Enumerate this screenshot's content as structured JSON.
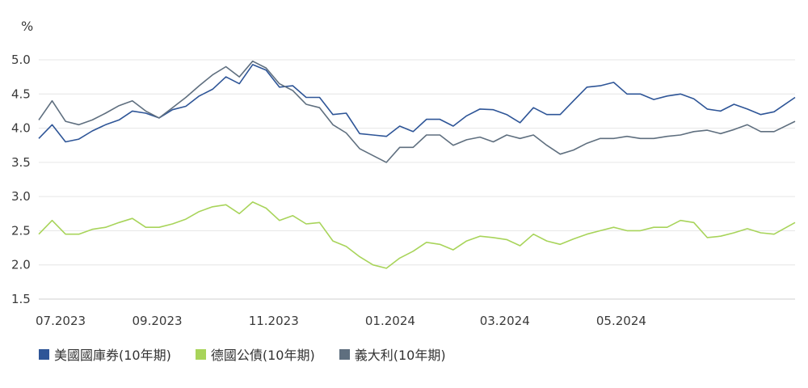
{
  "chart_data": {
    "type": "line",
    "unit_label": "%",
    "ylim": [
      1.5,
      5.0
    ],
    "y_ticks": [
      "5.0",
      "4.5",
      "4.0",
      "3.5",
      "3.0",
      "2.5",
      "2.0",
      "1.5"
    ],
    "x_ticks": [
      "07.2023",
      "09.2023",
      "11.2023",
      "01.2024",
      "03.2024",
      "05.2024"
    ],
    "x_range": [
      "2023-07-01",
      "2024-07-31"
    ],
    "grid": true,
    "legend_position": "bottom-left",
    "series": [
      {
        "name": "美國國庫券(10年期)",
        "color": "#2e5597",
        "points": [
          [
            "2023-07-01",
            3.85
          ],
          [
            "2023-07-08",
            4.05
          ],
          [
            "2023-07-15",
            3.8
          ],
          [
            "2023-07-22",
            3.84
          ],
          [
            "2023-07-29",
            3.96
          ],
          [
            "2023-08-05",
            4.05
          ],
          [
            "2023-08-12",
            4.12
          ],
          [
            "2023-08-19",
            4.25
          ],
          [
            "2023-08-26",
            4.22
          ],
          [
            "2023-09-02",
            4.15
          ],
          [
            "2023-09-09",
            4.27
          ],
          [
            "2023-09-16",
            4.32
          ],
          [
            "2023-09-23",
            4.47
          ],
          [
            "2023-09-30",
            4.57
          ],
          [
            "2023-10-07",
            4.75
          ],
          [
            "2023-10-14",
            4.65
          ],
          [
            "2023-10-21",
            4.93
          ],
          [
            "2023-10-28",
            4.85
          ],
          [
            "2023-11-04",
            4.6
          ],
          [
            "2023-11-11",
            4.62
          ],
          [
            "2023-11-18",
            4.45
          ],
          [
            "2023-11-25",
            4.45
          ],
          [
            "2023-12-02",
            4.2
          ],
          [
            "2023-12-09",
            4.22
          ],
          [
            "2023-12-16",
            3.92
          ],
          [
            "2023-12-23",
            3.9
          ],
          [
            "2023-12-30",
            3.88
          ],
          [
            "2024-01-06",
            4.03
          ],
          [
            "2024-01-13",
            3.95
          ],
          [
            "2024-01-20",
            4.13
          ],
          [
            "2024-01-27",
            4.13
          ],
          [
            "2024-02-03",
            4.03
          ],
          [
            "2024-02-10",
            4.18
          ],
          [
            "2024-02-17",
            4.28
          ],
          [
            "2024-02-24",
            4.27
          ],
          [
            "2024-03-02",
            4.2
          ],
          [
            "2024-03-09",
            4.08
          ],
          [
            "2024-03-16",
            4.3
          ],
          [
            "2024-03-23",
            4.2
          ],
          [
            "2024-03-30",
            4.2
          ],
          [
            "2024-04-06",
            4.4
          ],
          [
            "2024-04-13",
            4.6
          ],
          [
            "2024-04-20",
            4.62
          ],
          [
            "2024-04-27",
            4.67
          ],
          [
            "2024-05-04",
            4.5
          ],
          [
            "2024-05-11",
            4.5
          ],
          [
            "2024-05-18",
            4.42
          ],
          [
            "2024-05-25",
            4.47
          ],
          [
            "2024-06-01",
            4.5
          ],
          [
            "2024-06-08",
            4.43
          ],
          [
            "2024-06-15",
            4.28
          ],
          [
            "2024-06-22",
            4.25
          ],
          [
            "2024-06-29",
            4.35
          ],
          [
            "2024-07-06",
            4.28
          ],
          [
            "2024-07-13",
            4.2
          ],
          [
            "2024-07-20",
            4.24
          ],
          [
            "2024-07-31",
            4.45
          ]
        ]
      },
      {
        "name": "德國公債(10年期)",
        "color": "#a8d45a",
        "points": [
          [
            "2023-07-01",
            2.45
          ],
          [
            "2023-07-08",
            2.65
          ],
          [
            "2023-07-15",
            2.45
          ],
          [
            "2023-07-22",
            2.45
          ],
          [
            "2023-07-29",
            2.52
          ],
          [
            "2023-08-05",
            2.55
          ],
          [
            "2023-08-12",
            2.62
          ],
          [
            "2023-08-19",
            2.68
          ],
          [
            "2023-08-26",
            2.55
          ],
          [
            "2023-09-02",
            2.55
          ],
          [
            "2023-09-09",
            2.6
          ],
          [
            "2023-09-16",
            2.67
          ],
          [
            "2023-09-23",
            2.78
          ],
          [
            "2023-09-30",
            2.85
          ],
          [
            "2023-10-07",
            2.88
          ],
          [
            "2023-10-14",
            2.75
          ],
          [
            "2023-10-21",
            2.92
          ],
          [
            "2023-10-28",
            2.83
          ],
          [
            "2023-11-04",
            2.65
          ],
          [
            "2023-11-11",
            2.72
          ],
          [
            "2023-11-18",
            2.6
          ],
          [
            "2023-11-25",
            2.62
          ],
          [
            "2023-12-02",
            2.35
          ],
          [
            "2023-12-09",
            2.27
          ],
          [
            "2023-12-16",
            2.12
          ],
          [
            "2023-12-23",
            2.0
          ],
          [
            "2023-12-30",
            1.95
          ],
          [
            "2024-01-06",
            2.1
          ],
          [
            "2024-01-13",
            2.2
          ],
          [
            "2024-01-20",
            2.33
          ],
          [
            "2024-01-27",
            2.3
          ],
          [
            "2024-02-03",
            2.22
          ],
          [
            "2024-02-10",
            2.35
          ],
          [
            "2024-02-17",
            2.42
          ],
          [
            "2024-02-24",
            2.4
          ],
          [
            "2024-03-02",
            2.37
          ],
          [
            "2024-03-09",
            2.28
          ],
          [
            "2024-03-16",
            2.45
          ],
          [
            "2024-03-23",
            2.35
          ],
          [
            "2024-03-30",
            2.3
          ],
          [
            "2024-04-06",
            2.38
          ],
          [
            "2024-04-13",
            2.45
          ],
          [
            "2024-04-20",
            2.5
          ],
          [
            "2024-04-27",
            2.55
          ],
          [
            "2024-05-04",
            2.5
          ],
          [
            "2024-05-11",
            2.5
          ],
          [
            "2024-05-18",
            2.55
          ],
          [
            "2024-05-25",
            2.55
          ],
          [
            "2024-06-01",
            2.65
          ],
          [
            "2024-06-08",
            2.62
          ],
          [
            "2024-06-15",
            2.4
          ],
          [
            "2024-06-22",
            2.42
          ],
          [
            "2024-06-29",
            2.47
          ],
          [
            "2024-07-06",
            2.53
          ],
          [
            "2024-07-13",
            2.47
          ],
          [
            "2024-07-20",
            2.45
          ],
          [
            "2024-07-31",
            2.62
          ]
        ]
      },
      {
        "name": "義大利(10年期)",
        "color": "#5f6f7f",
        "points": [
          [
            "2023-07-01",
            4.12
          ],
          [
            "2023-07-08",
            4.4
          ],
          [
            "2023-07-15",
            4.1
          ],
          [
            "2023-07-22",
            4.05
          ],
          [
            "2023-07-29",
            4.12
          ],
          [
            "2023-08-05",
            4.22
          ],
          [
            "2023-08-12",
            4.33
          ],
          [
            "2023-08-19",
            4.4
          ],
          [
            "2023-08-26",
            4.25
          ],
          [
            "2023-09-02",
            4.15
          ],
          [
            "2023-09-09",
            4.3
          ],
          [
            "2023-09-16",
            4.45
          ],
          [
            "2023-09-23",
            4.62
          ],
          [
            "2023-09-30",
            4.78
          ],
          [
            "2023-10-07",
            4.9
          ],
          [
            "2023-10-14",
            4.75
          ],
          [
            "2023-10-21",
            4.98
          ],
          [
            "2023-10-28",
            4.88
          ],
          [
            "2023-11-04",
            4.65
          ],
          [
            "2023-11-11",
            4.55
          ],
          [
            "2023-11-18",
            4.35
          ],
          [
            "2023-11-25",
            4.3
          ],
          [
            "2023-12-02",
            4.05
          ],
          [
            "2023-12-09",
            3.93
          ],
          [
            "2023-12-16",
            3.7
          ],
          [
            "2023-12-23",
            3.6
          ],
          [
            "2023-12-30",
            3.5
          ],
          [
            "2024-01-06",
            3.72
          ],
          [
            "2024-01-13",
            3.72
          ],
          [
            "2024-01-20",
            3.9
          ],
          [
            "2024-01-27",
            3.9
          ],
          [
            "2024-02-03",
            3.75
          ],
          [
            "2024-02-10",
            3.83
          ],
          [
            "2024-02-17",
            3.87
          ],
          [
            "2024-02-24",
            3.8
          ],
          [
            "2024-03-02",
            3.9
          ],
          [
            "2024-03-09",
            3.85
          ],
          [
            "2024-03-16",
            3.9
          ],
          [
            "2024-03-23",
            3.75
          ],
          [
            "2024-03-30",
            3.62
          ],
          [
            "2024-04-06",
            3.68
          ],
          [
            "2024-04-13",
            3.78
          ],
          [
            "2024-04-20",
            3.85
          ],
          [
            "2024-04-27",
            3.85
          ],
          [
            "2024-05-04",
            3.88
          ],
          [
            "2024-05-11",
            3.85
          ],
          [
            "2024-05-18",
            3.85
          ],
          [
            "2024-05-25",
            3.88
          ],
          [
            "2024-06-01",
            3.9
          ],
          [
            "2024-06-08",
            3.95
          ],
          [
            "2024-06-15",
            3.97
          ],
          [
            "2024-06-22",
            3.92
          ],
          [
            "2024-06-29",
            3.98
          ],
          [
            "2024-07-06",
            4.05
          ],
          [
            "2024-07-13",
            3.95
          ],
          [
            "2024-07-20",
            3.95
          ],
          [
            "2024-07-31",
            4.1
          ]
        ]
      }
    ]
  }
}
